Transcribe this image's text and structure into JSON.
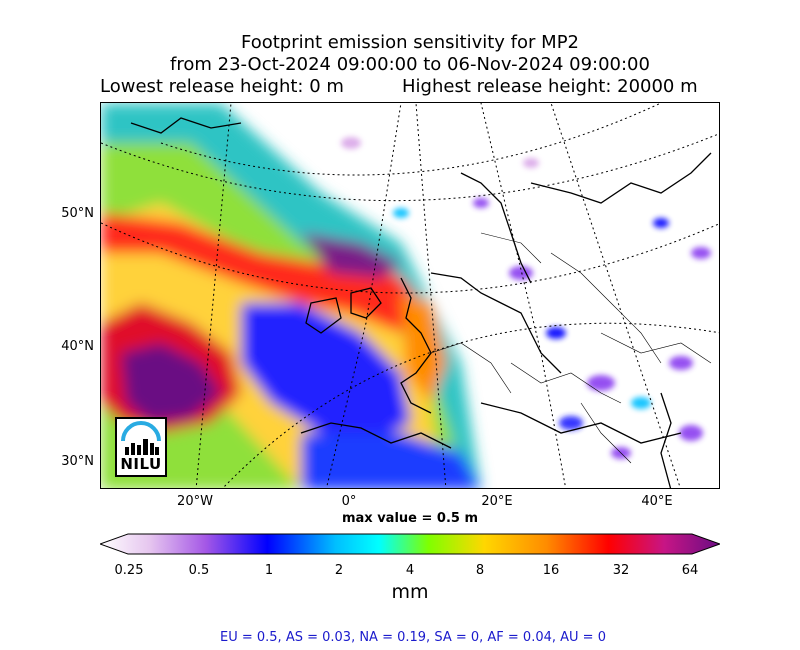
{
  "title": {
    "line1": "Footprint emission sensitivity for MP2",
    "line2": "from 23-Oct-2024 09:00:00 to 06-Nov-2024 09:00:00",
    "lowest": "Lowest release height: 0 m",
    "highest": "Highest release height: 20000 m"
  },
  "map": {
    "lat_labels": [
      "50°N",
      "40°N",
      "30°N"
    ],
    "lon_labels": [
      "20°W",
      "0°",
      "20°E",
      "40°E"
    ]
  },
  "max_value": "max value = 0.5 m",
  "colorbar": {
    "ticks": [
      "0.25",
      "0.5",
      "1",
      "2",
      "4",
      "8",
      "16",
      "32",
      "64"
    ],
    "unit": "mm",
    "colors": [
      "#ffffff",
      "#d9a6e8",
      "#8a3cf0",
      "#0000ff",
      "#00bfff",
      "#00ffff",
      "#7fff00",
      "#ffd700",
      "#ff8c00",
      "#ff0000",
      "#c71585",
      "#6a0d83"
    ]
  },
  "footer": "EU = 0.5,  AS = 0.03,  NA = 0.19,  SA = 0,  AF = 0.04,  AU = 0",
  "logo": {
    "text": "NILU"
  }
}
